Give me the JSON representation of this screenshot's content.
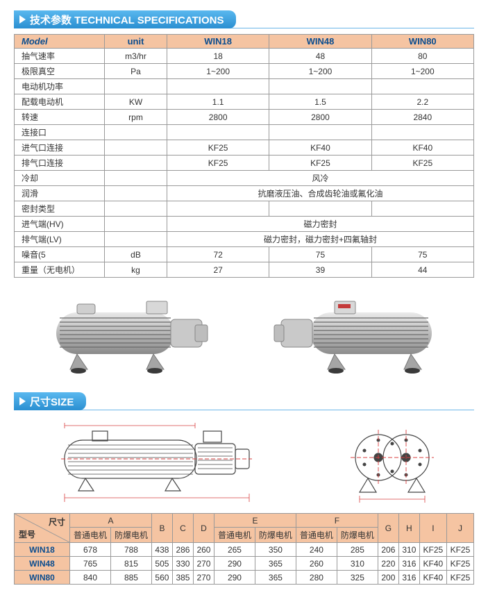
{
  "sections": {
    "spec_title": "技术参数 TECHNICAL SPECIFICATIONS",
    "size_title": "尺寸SIZE"
  },
  "spec_table": {
    "headers": [
      "Model",
      "unit",
      "WIN18",
      "WIN48",
      "WIN80"
    ],
    "rows": [
      {
        "label": "抽气速率",
        "unit": "m3/hr",
        "v": [
          "18",
          "48",
          "80"
        ]
      },
      {
        "label": "极限真空",
        "unit": "Pa",
        "v": [
          "1~200",
          "1~200",
          "1~200"
        ]
      },
      {
        "label": "电动机功率",
        "unit": "",
        "v": [
          "",
          "",
          ""
        ]
      },
      {
        "label": "配载电动机",
        "unit": "KW",
        "v": [
          "1.1",
          "1.5",
          "2.2"
        ]
      },
      {
        "label": "转速",
        "unit": "rpm",
        "v": [
          "2800",
          "2800",
          "2840"
        ]
      },
      {
        "label": "连接口",
        "unit": "",
        "v": [
          "",
          "",
          ""
        ]
      },
      {
        "label": "进气口连接",
        "unit": "",
        "v": [
          "KF25",
          "KF40",
          "KF40"
        ]
      },
      {
        "label": "排气口连接",
        "unit": "",
        "v": [
          "KF25",
          "KF25",
          "KF25"
        ]
      },
      {
        "label": "冷却",
        "span": "风冷"
      },
      {
        "label": "润滑",
        "span": "抗磨液压油、合成齿轮油或氟化油"
      },
      {
        "label": "密封类型",
        "unit": "",
        "v": [
          "",
          "",
          ""
        ]
      },
      {
        "label": "进气端(HV)",
        "span": "磁力密封"
      },
      {
        "label": "排气端(LV)",
        "span": "磁力密封，磁力密封+四氟轴封"
      },
      {
        "label": "噪音(5",
        "unit": "dB",
        "v": [
          "72",
          "75",
          "75"
        ]
      },
      {
        "label": "重量（无电机）",
        "unit": "kg",
        "v": [
          "27",
          "39",
          "44"
        ]
      }
    ]
  },
  "size_table": {
    "diag_top": "尺寸",
    "diag_bottom": "型号",
    "group_headers": [
      "A",
      "B",
      "C",
      "D",
      "E",
      "F",
      "G",
      "H",
      "I",
      "J"
    ],
    "sub_headers": {
      "A": [
        "普通电机",
        "防爆电机"
      ],
      "E": [
        "普通电机",
        "防爆电机"
      ],
      "F": [
        "普通电机",
        "防爆电机"
      ]
    },
    "rows": [
      {
        "model": "WIN18",
        "cells": [
          "678",
          "788",
          "438",
          "286",
          "260",
          "265",
          "350",
          "240",
          "285",
          "206",
          "310",
          "KF25",
          "KF25"
        ]
      },
      {
        "model": "WIN48",
        "cells": [
          "765",
          "815",
          "505",
          "330",
          "270",
          "290",
          "365",
          "260",
          "310",
          "220",
          "316",
          "KF40",
          "KF25"
        ]
      },
      {
        "model": "WIN80",
        "cells": [
          "840",
          "885",
          "560",
          "385",
          "270",
          "290",
          "365",
          "280",
          "325",
          "200",
          "316",
          "KF40",
          "KF25"
        ]
      }
    ]
  },
  "colors": {
    "header_grad_top": "#5ab8ef",
    "header_grad_bottom": "#2a8fd1",
    "peach": "#f5c4a2",
    "border": "#999999",
    "drawing_red": "#d94040",
    "drawing_stroke": "#444"
  }
}
